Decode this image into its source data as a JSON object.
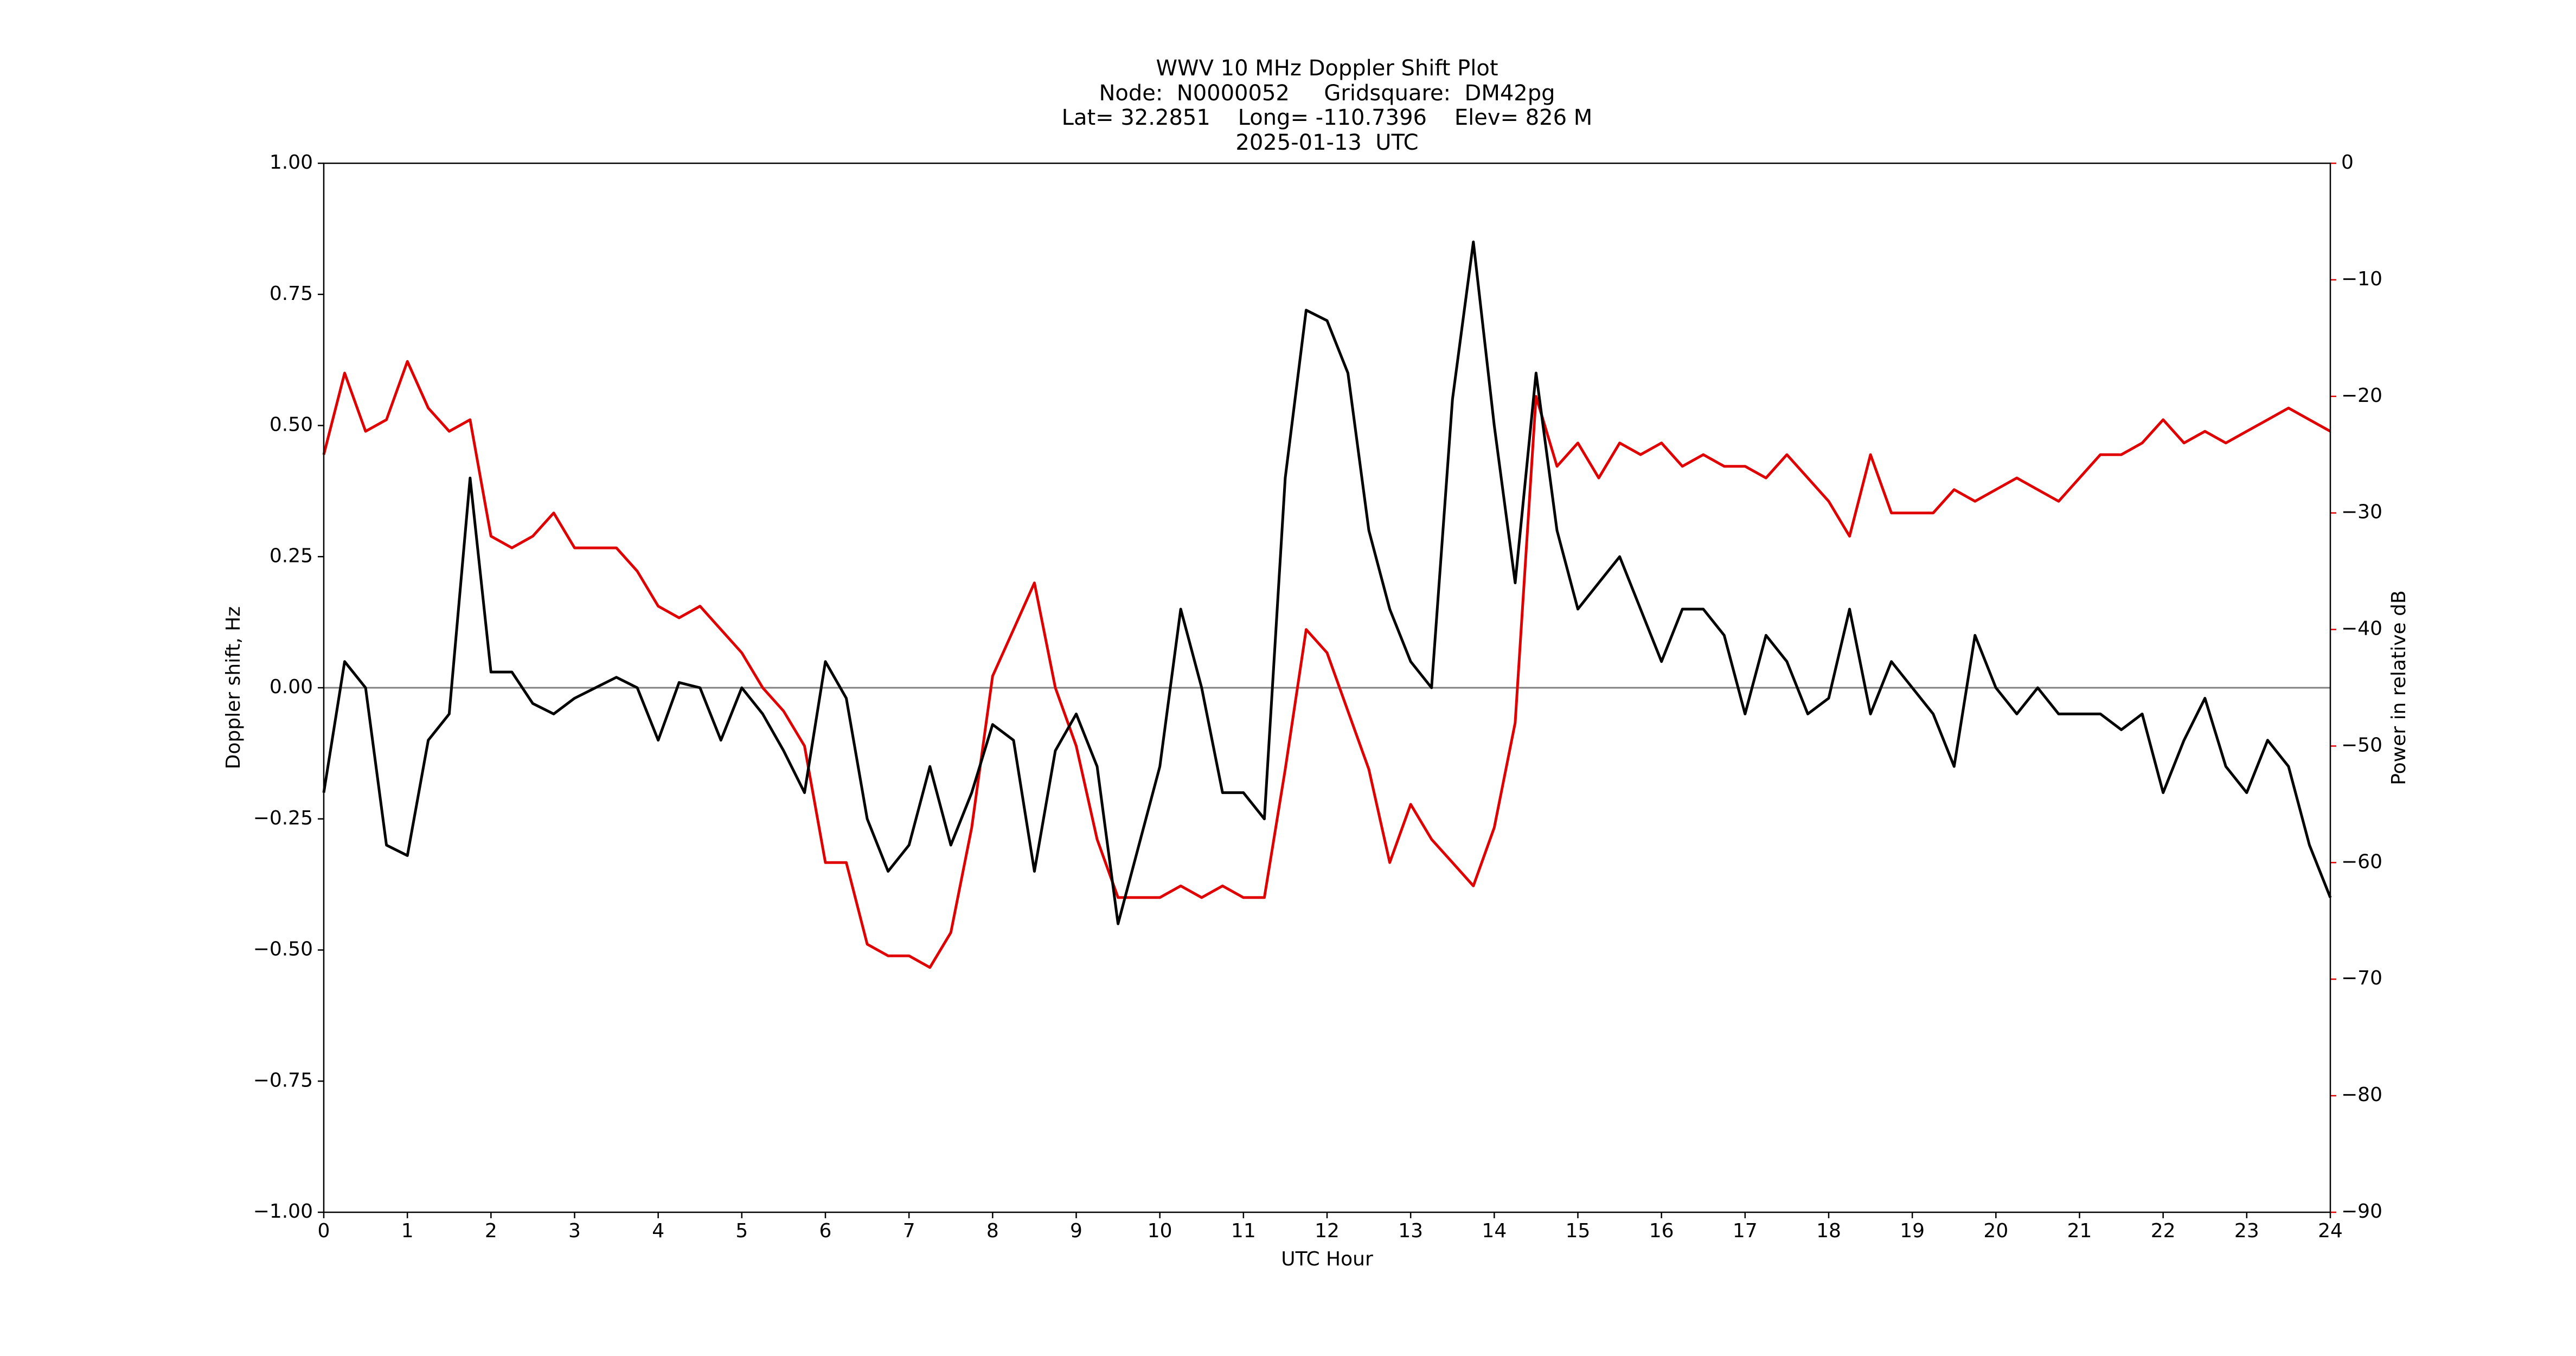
{
  "chart_data": {
    "type": "line",
    "title": "WWV 10 MHz Doppler Shift Plot",
    "subtitle": [
      "Node:  N0000052     Gridsquare:  DM42pg",
      "Lat= 32.2851    Long= -110.7396    Elev= 826 M",
      "2025-01-13  UTC"
    ],
    "x_label": "UTC Hour",
    "y_label": "Doppler shift, Hz",
    "y2_label": "Power in relative dB",
    "y2_color": "#e00000",
    "hline": 0,
    "x": [
      0,
      0.25,
      0.5,
      0.75,
      1,
      1.25,
      1.5,
      1.75,
      2,
      2.25,
      2.5,
      2.75,
      3,
      3.25,
      3.5,
      3.75,
      4,
      4.25,
      4.5,
      4.75,
      5,
      5.25,
      5.5,
      5.75,
      6,
      6.25,
      6.5,
      6.75,
      7,
      7.25,
      7.5,
      7.75,
      8,
      8.25,
      8.5,
      8.75,
      9,
      9.25,
      9.5,
      9.75,
      10,
      10.25,
      10.5,
      10.75,
      11,
      11.25,
      11.5,
      11.75,
      12,
      12.25,
      12.5,
      12.75,
      13,
      13.25,
      13.5,
      13.75,
      14,
      14.25,
      14.5,
      14.75,
      15,
      15.25,
      15.5,
      15.75,
      16,
      16.25,
      16.5,
      16.75,
      17,
      17.25,
      17.5,
      17.75,
      18,
      18.25,
      18.5,
      18.75,
      19,
      19.25,
      19.5,
      19.75,
      20,
      20.25,
      20.5,
      20.75,
      21,
      21.25,
      21.5,
      21.75,
      22,
      22.25,
      22.5,
      22.75,
      23,
      23.25,
      23.5,
      23.75,
      24
    ],
    "series": [
      {
        "name": "Doppler shift",
        "color": "#000000",
        "values": [
          -0.2,
          0.05,
          0.0,
          -0.3,
          -0.32,
          -0.1,
          -0.05,
          0.4,
          0.03,
          0.03,
          -0.03,
          -0.05,
          -0.02,
          0.0,
          0.02,
          0.0,
          -0.1,
          0.01,
          0.0,
          -0.1,
          0.0,
          -0.05,
          -0.12,
          -0.2,
          0.05,
          -0.02,
          -0.25,
          -0.35,
          -0.3,
          -0.15,
          -0.3,
          -0.2,
          -0.07,
          -0.1,
          -0.35,
          -0.12,
          -0.05,
          -0.15,
          -0.45,
          -0.3,
          -0.15,
          0.15,
          0.0,
          -0.2,
          -0.2,
          -0.25,
          0.4,
          0.72,
          0.7,
          0.6,
          0.3,
          0.15,
          0.05,
          0.0,
          0.55,
          0.85,
          0.5,
          0.2,
          0.6,
          0.3,
          0.15,
          0.2,
          0.25,
          0.15,
          0.05,
          0.15,
          0.15,
          0.1,
          -0.05,
          0.1,
          0.05,
          -0.05,
          -0.02,
          0.15,
          -0.05,
          0.05,
          0.0,
          -0.05,
          -0.15,
          0.1,
          0.0,
          -0.05,
          0.0,
          -0.05,
          -0.05,
          -0.05,
          -0.08,
          -0.05,
          -0.2,
          -0.1,
          -0.02,
          -0.15,
          -0.2,
          -0.1,
          -0.15,
          -0.3,
          -0.4
        ]
      },
      {
        "name": "Power",
        "color": "#e00000",
        "axis": "y2",
        "values": [
          -25,
          -18,
          -23,
          -22,
          -17,
          -21,
          -23,
          -22,
          -32,
          -33,
          -32,
          -30,
          -33,
          -33,
          -33,
          -35,
          -38,
          -39,
          -38,
          -40,
          -42,
          -45,
          -47,
          -50,
          -60,
          -60,
          -67,
          -68,
          -68,
          -69,
          -66,
          -57,
          -44,
          -40,
          -36,
          -45,
          -50,
          -58,
          -63,
          -63,
          -63,
          -62,
          -63,
          -62,
          -63,
          -63,
          -52,
          -40,
          -42,
          -47,
          -52,
          -60,
          -55,
          -58,
          -60,
          -62,
          -57,
          -48,
          -20,
          -26,
          -24,
          -27,
          -24,
          -25,
          -24,
          -26,
          -25,
          -26,
          -26,
          -27,
          -25,
          -27,
          -29,
          -32,
          -25,
          -30,
          -30,
          -30,
          -28,
          -29,
          -28,
          -27,
          -28,
          -29,
          -27,
          -25,
          -25,
          -24,
          -22,
          -24,
          -23,
          -24,
          -23,
          -22,
          -21,
          -22,
          -23
        ]
      }
    ],
    "xlim": [
      0,
      24
    ],
    "xticks": [
      0,
      1,
      2,
      3,
      4,
      5,
      6,
      7,
      8,
      9,
      10,
      11,
      12,
      13,
      14,
      15,
      16,
      17,
      18,
      19,
      20,
      21,
      22,
      23,
      24
    ],
    "ylim": [
      -1,
      1
    ],
    "yticks": [
      {
        "value": -1,
        "label": "−1.00"
      },
      {
        "value": -0.75,
        "label": "−0.75"
      },
      {
        "value": -0.5,
        "label": "−0.50"
      },
      {
        "value": -0.25,
        "label": "−0.25"
      },
      {
        "value": 0,
        "label": "0.00"
      },
      {
        "value": 0.25,
        "label": "0.25"
      },
      {
        "value": 0.5,
        "label": "0.50"
      },
      {
        "value": 0.75,
        "label": "0.75"
      },
      {
        "value": 1,
        "label": "1.00"
      }
    ],
    "y2lim": [
      -90,
      0
    ],
    "y2ticks": [
      {
        "value": -90,
        "label": "−90"
      },
      {
        "value": -80,
        "label": "−80"
      },
      {
        "value": -70,
        "label": "−70"
      },
      {
        "value": -60,
        "label": "−60"
      },
      {
        "value": -50,
        "label": "−50"
      },
      {
        "value": -40,
        "label": "−40"
      },
      {
        "value": -30,
        "label": "−30"
      },
      {
        "value": -20,
        "label": "−20"
      },
      {
        "value": -10,
        "label": "−10"
      },
      0
    ]
  }
}
